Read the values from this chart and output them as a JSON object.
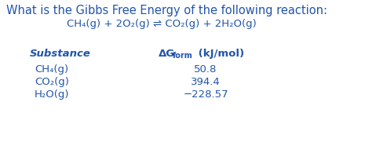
{
  "title_line1": "What is the Gibbs Free Energy of the following reaction:",
  "title_line2": "CH₄(g) + 2O₂(g) ⇌ CO₂(g) + 2H₂O(g)",
  "col_header_substance": "Substance",
  "col_header_ag": "ΔG",
  "col_header_form": "form",
  "col_header_units": " (kJ/mol)",
  "substances": [
    "CH₄(g)",
    "CO₂(g)",
    "H₂O(g)"
  ],
  "values": [
    "50.8",
    "394.4",
    "−228.57"
  ],
  "bg_color": "#ffffff",
  "text_color": "#2255aa",
  "title_fontsize": 10.5,
  "reaction_fontsize": 9.5,
  "header_fontsize": 9.5,
  "body_fontsize": 9.5,
  "figw": 4.79,
  "figh": 1.95,
  "dpi": 100
}
